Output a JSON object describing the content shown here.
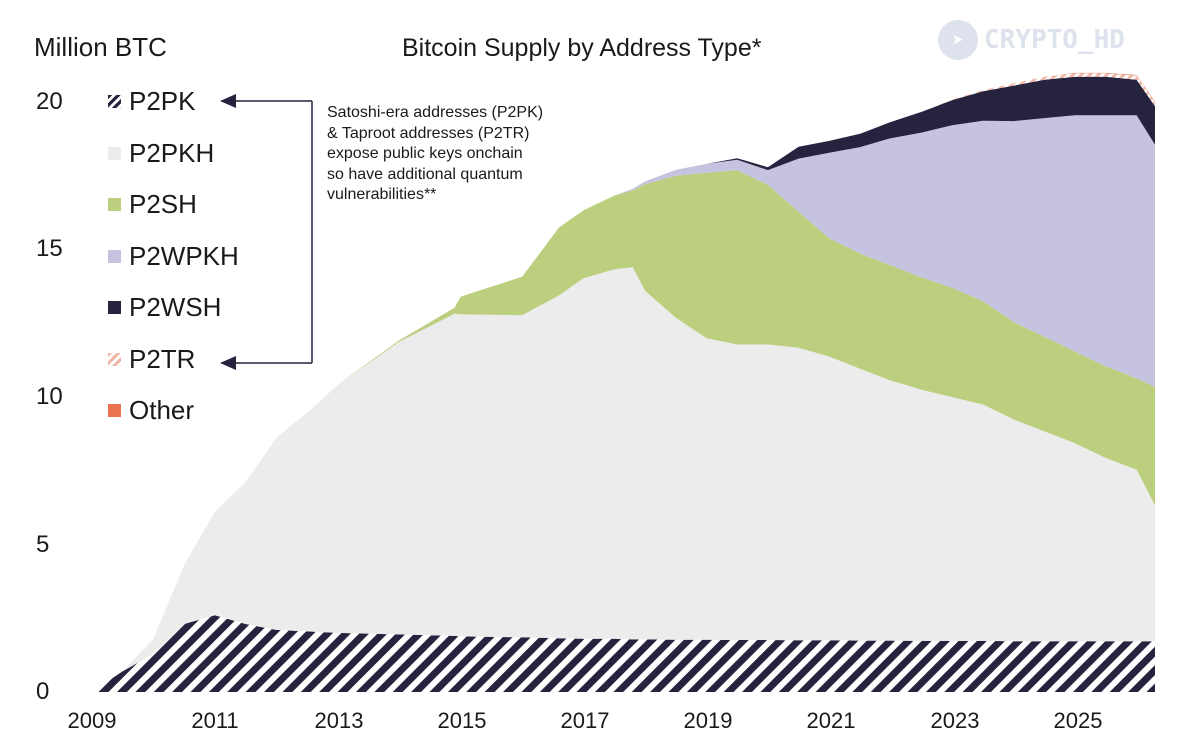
{
  "header": {
    "ylabel": "Million BTC",
    "title": "Bitcoin Supply by Address Type*",
    "watermark": "CRYPTO_HD"
  },
  "annotation": [
    "Satoshi-era addresses (P2PK)",
    "& Taproot addresses (P2TR)",
    "expose public keys onchain",
    "so have additional quantum",
    "vulnerabilities**"
  ],
  "legend": [
    {
      "label": "P2PK",
      "color": "#26233f",
      "pattern": "stripe"
    },
    {
      "label": "P2PKH",
      "color": "#ececec",
      "pattern": "solid"
    },
    {
      "label": "P2SH",
      "color": "#bccf7f",
      "pattern": "solid"
    },
    {
      "label": "P2WPKH",
      "color": "#c5c3e0",
      "pattern": "solid"
    },
    {
      "label": "P2WSH",
      "color": "#26233f",
      "pattern": "solid"
    },
    {
      "label": "P2TR",
      "color": "#f0b8a8",
      "pattern": "stripe"
    },
    {
      "label": "Other",
      "color": "#ea7350",
      "pattern": "solid"
    }
  ],
  "chart_data": {
    "type": "area",
    "title": "Bitcoin Supply by Address Type*",
    "ylabel": "Million BTC",
    "xlabel": "",
    "ylim": [
      0,
      20
    ],
    "xlim": [
      2009,
      2026.3
    ],
    "yticks": [
      "0",
      "5",
      "10",
      "15",
      "20"
    ],
    "xticks": [
      "2009",
      "2011",
      "2013",
      "2015",
      "2017",
      "2019",
      "2021",
      "2023",
      "2025"
    ],
    "x": [
      2009,
      2009.5,
      2010,
      2010.5,
      2011,
      2011.5,
      2012,
      2012.5,
      2013,
      2014,
      2014.9,
      2015,
      2016,
      2016.6,
      2017,
      2017.5,
      2017.8,
      2018,
      2018.5,
      2019,
      2019.5,
      2020,
      2020.5,
      2021,
      2021.5,
      2022,
      2022.5,
      2023,
      2023.5,
      2024,
      2024.5,
      2025,
      2025.5,
      2026,
      2026.3
    ],
    "series": [
      {
        "name": "P2PK",
        "values": [
          0,
          0.7,
          1.3,
          2.3,
          2.6,
          2.3,
          2.1,
          2.05,
          2.0,
          1.95,
          1.9,
          1.88,
          1.85,
          1.82,
          1.8,
          1.8,
          1.78,
          1.78,
          1.77,
          1.77,
          1.76,
          1.76,
          1.75,
          1.75,
          1.74,
          1.74,
          1.73,
          1.73,
          1.73,
          1.72,
          1.72,
          1.72,
          1.72,
          1.72,
          1.72
        ]
      },
      {
        "name": "P2PKH",
        "values": [
          0,
          0,
          0.5,
          2.0,
          3.5,
          4.8,
          6.5,
          7.4,
          8.4,
          9.9,
          10.9,
          10.9,
          10.9,
          11.6,
          12.2,
          12.5,
          12.6,
          11.8,
          10.9,
          10.2,
          10.0,
          10.0,
          9.9,
          9.6,
          9.2,
          8.8,
          8.5,
          8.25,
          8.0,
          7.5,
          7.1,
          6.7,
          6.2,
          5.8,
          4.6
        ]
      },
      {
        "name": "P2SH",
        "values": [
          0,
          0,
          0,
          0,
          0,
          0,
          0,
          0,
          0,
          0.05,
          0.2,
          0.6,
          1.3,
          2.3,
          2.3,
          2.5,
          2.6,
          3.6,
          4.8,
          5.6,
          5.9,
          5.4,
          4.6,
          4.0,
          3.9,
          3.9,
          3.8,
          3.7,
          3.5,
          3.3,
          3.2,
          3.1,
          3.1,
          3.1,
          4.0
        ]
      },
      {
        "name": "P2WPKH",
        "values": [
          0,
          0,
          0,
          0,
          0,
          0,
          0,
          0,
          0,
          0,
          0,
          0,
          0,
          0,
          0,
          0,
          0.05,
          0.1,
          0.2,
          0.3,
          0.35,
          0.5,
          1.8,
          2.9,
          3.6,
          4.3,
          4.9,
          5.5,
          6.1,
          6.8,
          7.4,
          8.0,
          8.5,
          8.9,
          8.2
        ]
      },
      {
        "name": "P2WSH",
        "values": [
          0,
          0,
          0,
          0,
          0,
          0,
          0,
          0,
          0,
          0,
          0,
          0,
          0,
          0,
          0,
          0,
          0,
          0,
          0,
          0,
          0.05,
          0.1,
          0.4,
          0.4,
          0.45,
          0.55,
          0.7,
          0.85,
          1.0,
          1.2,
          1.3,
          1.3,
          1.3,
          1.2,
          1.3
        ]
      },
      {
        "name": "P2TR",
        "values": [
          0,
          0,
          0,
          0,
          0,
          0,
          0,
          0,
          0,
          0,
          0,
          0,
          0,
          0,
          0,
          0,
          0,
          0,
          0,
          0,
          0,
          0,
          0,
          0,
          0,
          0,
          0,
          0.02,
          0.04,
          0.08,
          0.1,
          0.12,
          0.12,
          0.14,
          0.14
        ]
      },
      {
        "name": "Other",
        "values": [
          0,
          0,
          0,
          0,
          0,
          0,
          0,
          0,
          0,
          0,
          0,
          0,
          0,
          0,
          0,
          0,
          0,
          0,
          0,
          0,
          0,
          0,
          0,
          0,
          0,
          0,
          0,
          0,
          0,
          0,
          0,
          0.01,
          0.01,
          0.02,
          0.02
        ]
      }
    ]
  }
}
